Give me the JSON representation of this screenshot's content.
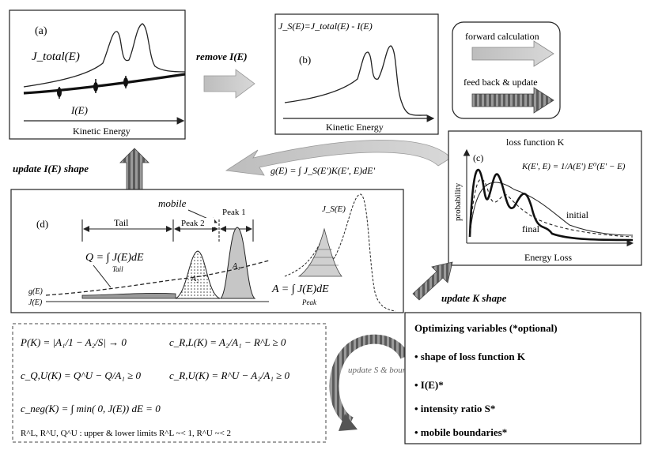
{
  "panel_a": {
    "label": "(a)",
    "jtotal": "J_total(E)",
    "bg": "I(E)",
    "xaxis": "Kinetic Energy"
  },
  "arrow_remove": "remove I(E)",
  "panel_b": {
    "label": "(b)",
    "formula": "J_S(E)=J_total(E) - I(E)",
    "xaxis": "Kinetic Energy"
  },
  "legend": {
    "forward": "forward calculation",
    "feedback": "feed back & update"
  },
  "update_i": "update I(E) shape",
  "g_formula": "g(E) = ∫ J_S(E')K(E', E)dE'",
  "panel_c": {
    "label": "(c)",
    "title": "loss function K",
    "formula": "K(E', E) = 1/A(E') E⁰(E' − E)",
    "ylabel": "probability",
    "xlabel": "Energy Loss",
    "initial": "initial",
    "final": "final"
  },
  "panel_d": {
    "label": "(d)",
    "mobile": "mobile",
    "tail": "Tail",
    "peak2": "Peak 2",
    "peak1": "Peak 1",
    "jse": "J_S(E)",
    "q_formula": "Q = ∫ J(E)dE",
    "q_sub": "Tail",
    "a_formula": "A = ∫ J(E)dE",
    "a_sub": "Peak",
    "ge": "g(E)",
    "je": "J(E)",
    "a1": "A₁",
    "a2": "A₂"
  },
  "update_k": "update K shape",
  "constraints": {
    "p": "P(K) = |A₁/1 − A₂/S| → 0",
    "c1": "c_R,L(K) = A₂/A₁ − R^L ≥ 0",
    "c2": "c_Q,U(K) = Q^U − Q/A₁ ≥ 0",
    "c3": "c_R,U(K) = R^U − A₂/A₁ ≥ 0",
    "c4": "c_neg(K) = ∫ min( 0, J(E)) dE = 0",
    "limits": "R^L, R^U, Q^U : upper & lower limits R^L ~< 1, R^U ~< 2"
  },
  "update_s": "update S & boundaries",
  "optim": {
    "title": "Optimizing variables (*optional)",
    "items": [
      "• shape of loss function K",
      "• I(E)*",
      "• intensity ratio S*",
      "• mobile boundaries*"
    ]
  }
}
